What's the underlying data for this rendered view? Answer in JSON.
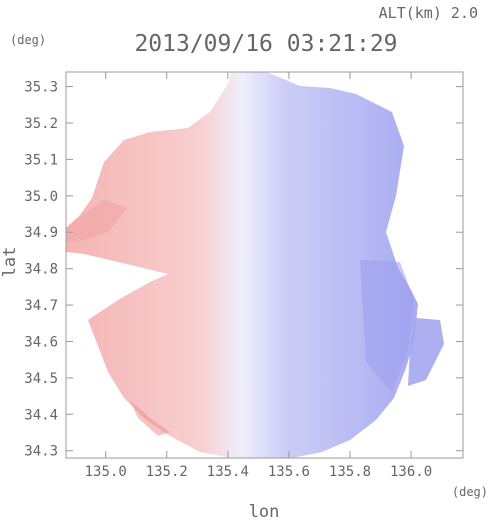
{
  "chart_data": {
    "type": "heatmap",
    "title": "2013/09/16 03:21:29",
    "altitude_label": "ALT(km) 2.0",
    "xlabel": "lon",
    "ylabel": "lat",
    "x_unit": "(deg)",
    "y_unit": "(deg)",
    "xlim": [
      134.87,
      136.17
    ],
    "ylim": [
      34.28,
      35.34
    ],
    "x_ticks": [
      "135.0",
      "135.2",
      "135.4",
      "135.6",
      "135.8",
      "136.0"
    ],
    "y_ticks": [
      "34.3",
      "34.4",
      "34.5",
      "34.6",
      "34.7",
      "34.8",
      "34.9",
      "35.0",
      "35.1",
      "35.2",
      "35.3"
    ],
    "radar_center": {
      "lon": 135.52,
      "lat": 34.82
    },
    "colors": {
      "receding": "#f2a6a6",
      "approaching": "#a7a9f2",
      "near_zero": "#eeeefc",
      "frame": "#9a9a9a"
    },
    "grid": false
  }
}
